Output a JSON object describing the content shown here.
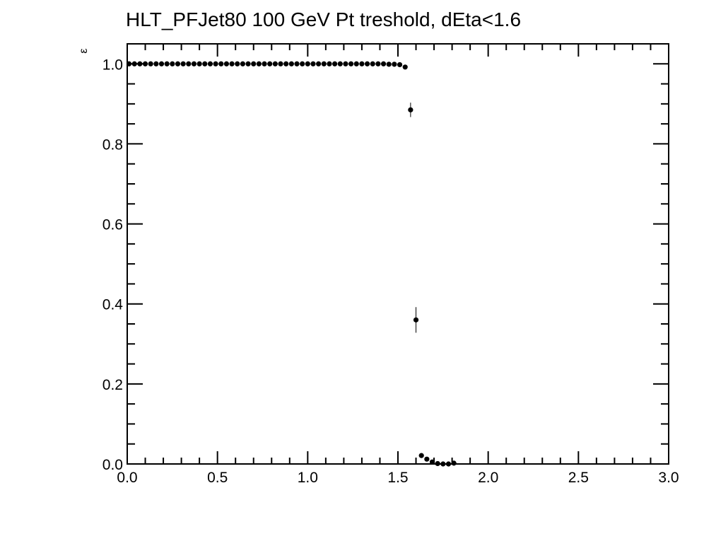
{
  "chart_data": {
    "type": "scatter",
    "title": "HLT_PFJet80 100 GeV Pt treshold, dEta<1.6",
    "xlabel": "",
    "ylabel": "ε",
    "xlim": [
      0.0,
      3.0
    ],
    "ylim": [
      0.0,
      1.05
    ],
    "x_ticks": [
      "0.0",
      "0.5",
      "1.0",
      "1.5",
      "2.0",
      "2.5",
      "3.0"
    ],
    "y_ticks": [
      "0.0",
      "0.2",
      "0.4",
      "0.6",
      "0.8",
      "1.0"
    ],
    "grid": false,
    "legend": "none",
    "marker_color": "#000000",
    "series": [
      {
        "x": [
          0.01,
          0.04,
          0.07,
          0.1,
          0.13,
          0.16,
          0.19,
          0.22,
          0.25,
          0.28,
          0.31,
          0.34,
          0.37,
          0.4,
          0.43,
          0.46,
          0.49,
          0.52,
          0.55,
          0.58,
          0.61,
          0.64,
          0.67,
          0.7,
          0.73,
          0.76,
          0.79,
          0.82,
          0.85,
          0.88,
          0.91,
          0.94,
          0.97,
          1.0,
          1.03,
          1.06,
          1.09,
          1.12,
          1.15,
          1.18,
          1.21,
          1.24,
          1.27,
          1.3,
          1.33,
          1.36,
          1.39,
          1.42,
          1.45,
          1.48,
          1.51,
          1.54,
          1.57,
          1.6,
          1.63,
          1.66,
          1.69,
          1.72,
          1.75,
          1.78,
          1.81
        ],
        "y": [
          1.0,
          1.0,
          1.0,
          1.0,
          1.0,
          1.0,
          1.0,
          1.0,
          1.0,
          1.0,
          1.0,
          1.0,
          1.0,
          1.0,
          1.0,
          1.0,
          1.0,
          1.0,
          1.0,
          1.0,
          1.0,
          1.0,
          1.0,
          1.0,
          1.0,
          1.0,
          1.0,
          1.0,
          1.0,
          1.0,
          1.0,
          1.0,
          1.0,
          1.0,
          1.0,
          1.0,
          1.0,
          1.0,
          1.0,
          1.0,
          1.0,
          1.0,
          1.0,
          1.0,
          1.0,
          1.0,
          1.0,
          1.0,
          0.999,
          0.999,
          0.998,
          0.992,
          0.885,
          0.36,
          0.021,
          0.012,
          0.005,
          0.001,
          0.0,
          0.0,
          0.002
        ],
        "yerr": [
          0,
          0,
          0,
          0,
          0,
          0,
          0,
          0,
          0,
          0,
          0,
          0,
          0,
          0,
          0,
          0,
          0,
          0,
          0,
          0,
          0,
          0,
          0,
          0,
          0,
          0,
          0,
          0,
          0,
          0,
          0,
          0,
          0,
          0,
          0,
          0,
          0,
          0,
          0,
          0,
          0,
          0,
          0,
          0,
          0,
          0,
          0,
          0,
          0,
          0,
          0.001,
          0.003,
          0.018,
          0.032,
          0.006,
          0.005,
          0.004,
          0.002,
          0.001,
          0.001,
          0.002
        ]
      }
    ]
  }
}
